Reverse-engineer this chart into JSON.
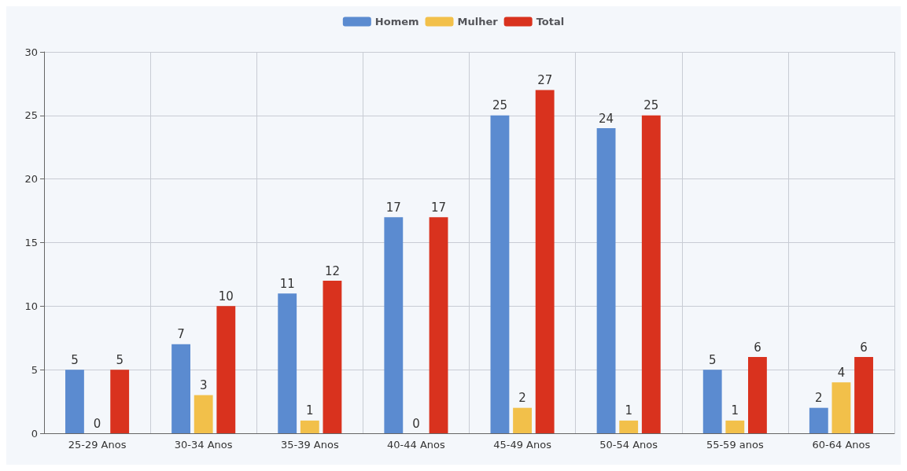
{
  "chart_data": {
    "type": "bar",
    "categories": [
      "25-29 Anos",
      "30-34 Anos",
      "35-39 Anos",
      "40-44 Anos",
      "45-49 Anos",
      "50-54 Anos",
      "55-59 anos",
      "60-64 Anos"
    ],
    "series": [
      {
        "name": "Homem",
        "color": "#5b8bd0",
        "values": [
          5,
          7,
          11,
          17,
          25,
          24,
          5,
          2
        ]
      },
      {
        "name": "Mulher",
        "color": "#f2c04a",
        "values": [
          0,
          3,
          1,
          0,
          2,
          1,
          1,
          4
        ]
      },
      {
        "name": "Total",
        "color": "#d9321e",
        "values": [
          5,
          10,
          12,
          17,
          27,
          25,
          6,
          6
        ]
      }
    ],
    "ylim": [
      0,
      30
    ],
    "yticks": [
      0,
      5,
      10,
      15,
      20,
      25,
      30
    ],
    "grid": true,
    "legend": "top",
    "data_labels": true
  }
}
